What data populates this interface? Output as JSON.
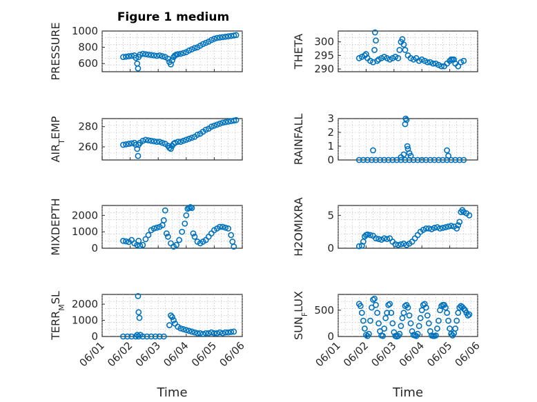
{
  "chart_data": {
    "title": "Figure 1 medium",
    "xlabel": "Time",
    "xticks": [
      "06/01",
      "06/02",
      "06/03",
      "06/04",
      "06/05",
      "06/06"
    ],
    "xlim_days": [
      0,
      5
    ],
    "marker": "circle",
    "color": "#0072BD",
    "panels": [
      {
        "type": "scatter",
        "ylabel": "PRESSURE",
        "ylim": [
          500,
          1000
        ],
        "yticks": [
          600,
          800,
          1000
        ],
        "x": [
          0.75,
          0.85,
          0.95,
          1.05,
          1.15,
          1.2,
          1.25,
          1.28,
          1.3,
          1.35,
          1.45,
          1.55,
          1.65,
          1.75,
          1.85,
          1.95,
          2.05,
          2.15,
          2.25,
          2.35,
          2.4,
          2.45,
          2.5,
          2.55,
          2.6,
          2.65,
          2.7,
          2.8,
          2.9,
          3.0,
          3.1,
          3.2,
          3.3,
          3.4,
          3.5,
          3.6,
          3.7,
          3.8,
          3.9,
          4.0,
          4.1,
          4.2,
          4.3,
          4.4,
          4.5,
          4.6,
          4.7,
          4.78
        ],
        "y": [
          680,
          685,
          690,
          695,
          700,
          670,
          600,
          540,
          680,
          710,
          720,
          715,
          710,
          705,
          700,
          695,
          700,
          690,
          680,
          660,
          620,
          590,
          640,
          680,
          700,
          710,
          715,
          720,
          730,
          740,
          760,
          775,
          790,
          800,
          820,
          840,
          855,
          870,
          890,
          905,
          915,
          920,
          925,
          930,
          935,
          940,
          945,
          950
        ]
      },
      {
        "type": "scatter",
        "ylabel": "THETA",
        "ylim": [
          289,
          304
        ],
        "yticks": [
          290,
          295,
          300
        ],
        "x": [
          0.75,
          0.85,
          0.95,
          1.0,
          1.05,
          1.15,
          1.25,
          1.3,
          1.32,
          1.35,
          1.4,
          1.45,
          1.55,
          1.65,
          1.75,
          1.85,
          1.95,
          2.05,
          2.15,
          2.2,
          2.25,
          2.3,
          2.35,
          2.4,
          2.5,
          2.6,
          2.7,
          2.8,
          2.9,
          3.0,
          3.1,
          3.2,
          3.3,
          3.4,
          3.5,
          3.6,
          3.7,
          3.8,
          3.9,
          4.0,
          4.05,
          4.1,
          4.15,
          4.2,
          4.3,
          4.4,
          4.5
        ],
        "y": [
          294,
          294.5,
          295,
          295.5,
          294,
          293,
          292.5,
          297,
          303.5,
          300.5,
          293,
          293.5,
          294,
          294.5,
          294,
          293.5,
          294,
          294.5,
          294,
          297,
          300,
          301,
          299,
          297,
          295,
          294,
          293.5,
          294,
          293,
          293.5,
          293,
          292.5,
          292.5,
          292,
          292,
          291.5,
          291,
          291,
          292,
          293,
          293.5,
          293.5,
          293.5,
          292,
          291,
          292.5,
          293
        ]
      },
      {
        "type": "scatter",
        "ylabel": "AIR_TEMP",
        "ylim": [
          247,
          288
        ],
        "yticks": [
          260,
          280
        ],
        "x": [
          0.75,
          0.85,
          0.95,
          1.05,
          1.15,
          1.2,
          1.25,
          1.28,
          1.3,
          1.35,
          1.45,
          1.55,
          1.65,
          1.75,
          1.85,
          1.95,
          2.05,
          2.15,
          2.25,
          2.35,
          2.4,
          2.45,
          2.5,
          2.55,
          2.6,
          2.7,
          2.8,
          2.9,
          3.0,
          3.1,
          3.2,
          3.3,
          3.4,
          3.5,
          3.6,
          3.7,
          3.8,
          3.9,
          4.0,
          4.1,
          4.2,
          4.3,
          4.4,
          4.5,
          4.6,
          4.7,
          4.78
        ],
        "y": [
          262,
          262.5,
          263,
          263.5,
          264,
          262,
          258,
          251,
          262,
          264,
          266,
          267,
          266.5,
          266,
          265.5,
          265,
          265,
          264,
          263,
          261,
          259,
          258,
          261,
          263,
          264,
          265,
          265,
          266,
          267,
          268,
          269,
          270,
          272,
          273,
          275,
          277,
          278,
          280,
          281,
          282,
          283,
          284,
          284.5,
          285,
          285.5,
          286,
          286.5
        ]
      },
      {
        "type": "scatter",
        "ylabel": "RAINFALL",
        "ylim": [
          0,
          3
        ],
        "yticks": [
          0,
          1,
          2,
          3
        ],
        "x": [
          0.75,
          0.9,
          1.05,
          1.2,
          1.35,
          1.5,
          1.65,
          1.8,
          1.95,
          2.1,
          2.25,
          2.4,
          2.55,
          2.7,
          2.85,
          3.0,
          3.15,
          3.3,
          3.45,
          3.6,
          3.75,
          3.9,
          4.05,
          4.2,
          4.35,
          4.5,
          1.25,
          2.25,
          2.35,
          2.4,
          2.42,
          2.45,
          2.48,
          2.5,
          2.55,
          2.6,
          3.9,
          3.95
        ],
        "y": [
          0,
          0,
          0,
          0,
          0,
          0,
          0,
          0,
          0,
          0,
          0,
          0,
          0,
          0,
          0,
          0,
          0,
          0,
          0,
          0,
          0,
          0,
          0,
          0,
          0,
          0,
          0.7,
          0.2,
          0.4,
          2.6,
          3.0,
          2.9,
          1.0,
          0.8,
          0.5,
          0.3,
          0.7,
          0.3
        ]
      },
      {
        "type": "scatter",
        "ylabel": "MIXDEPTH",
        "ylim": [
          0,
          2600
        ],
        "yticks": [
          0,
          1000,
          2000
        ],
        "x": [
          0.75,
          0.85,
          0.95,
          1.05,
          1.15,
          1.25,
          1.3,
          1.35,
          1.45,
          1.55,
          1.65,
          1.75,
          1.85,
          1.95,
          2.05,
          2.15,
          2.2,
          2.25,
          2.3,
          2.35,
          2.45,
          2.55,
          2.65,
          2.75,
          2.85,
          2.95,
          3.0,
          3.05,
          3.1,
          3.15,
          3.2,
          3.25,
          3.3,
          3.4,
          3.5,
          3.6,
          3.7,
          3.8,
          3.9,
          4.0,
          4.1,
          4.2,
          4.3,
          4.4,
          4.5,
          4.6,
          4.65,
          4.7
        ],
        "y": [
          450,
          420,
          380,
          500,
          300,
          200,
          450,
          150,
          200,
          550,
          800,
          1100,
          1200,
          1250,
          1300,
          1400,
          1700,
          2300,
          900,
          700,
          300,
          100,
          200,
          500,
          1000,
          1500,
          2000,
          2400,
          2450,
          2500,
          2450,
          900,
          700,
          400,
          300,
          400,
          500,
          700,
          900,
          1100,
          1200,
          1300,
          1300,
          1250,
          1200,
          800,
          400,
          100
        ]
      },
      {
        "type": "scatter",
        "ylabel": "H2OMIXRA",
        "ylim": [
          0,
          6.5
        ],
        "yticks": [
          0,
          5
        ],
        "x": [
          0.75,
          0.85,
          0.9,
          0.95,
          1.0,
          1.05,
          1.15,
          1.25,
          1.35,
          1.45,
          1.55,
          1.65,
          1.75,
          1.85,
          1.95,
          2.05,
          2.15,
          2.25,
          2.35,
          2.45,
          2.55,
          2.65,
          2.75,
          2.85,
          2.95,
          3.05,
          3.15,
          3.25,
          3.35,
          3.45,
          3.55,
          3.65,
          3.75,
          3.85,
          3.95,
          4.05,
          4.15,
          4.25,
          4.3,
          4.35,
          4.4,
          4.45,
          4.5,
          4.6,
          4.7
        ],
        "y": [
          0.3,
          0.4,
          1.0,
          1.8,
          2.0,
          2.1,
          2.0,
          1.9,
          1.5,
          1.4,
          1.3,
          1.5,
          1.4,
          1.5,
          1.0,
          0.6,
          0.5,
          0.6,
          0.7,
          0.5,
          0.7,
          1.0,
          1.5,
          2.0,
          2.5,
          2.8,
          3.0,
          3.0,
          2.9,
          3.1,
          3.2,
          3.0,
          3.1,
          3.2,
          3.3,
          3.4,
          3.3,
          3.0,
          3.5,
          4.0,
          5.5,
          5.8,
          5.5,
          5.3,
          5.0
        ]
      },
      {
        "type": "scatter",
        "ylabel": "TERR_MSL",
        "ylim": [
          0,
          2600
        ],
        "yticks": [
          0,
          1000,
          2000
        ],
        "x": [
          0.75,
          0.9,
          1.05,
          1.2,
          1.3,
          1.45,
          1.6,
          1.75,
          1.9,
          2.05,
          2.2,
          1.25,
          1.28,
          1.3,
          1.33,
          1.36,
          2.4,
          2.45,
          2.5,
          2.55,
          2.6,
          2.7,
          2.8,
          2.9,
          3.0,
          3.1,
          3.2,
          3.3,
          3.4,
          3.5,
          3.6,
          3.7,
          3.8,
          3.9,
          4.0,
          4.1,
          4.2,
          4.3,
          4.4,
          4.5,
          4.6,
          4.7
        ],
        "y": [
          0,
          0,
          0,
          0,
          0,
          0,
          0,
          0,
          0,
          0,
          0,
          100,
          2500,
          1500,
          1150,
          100,
          700,
          1300,
          1200,
          1000,
          800,
          600,
          500,
          450,
          400,
          350,
          300,
          250,
          200,
          200,
          150,
          200,
          200,
          250,
          200,
          200,
          250,
          200,
          250,
          250,
          280,
          300
        ]
      },
      {
        "type": "scatter",
        "ylabel": "SUN_FLUX",
        "ylim": [
          0,
          800
        ],
        "yticks": [
          0,
          500
        ],
        "x": [
          0.75,
          0.8,
          0.85,
          0.9,
          0.95,
          1.0,
          1.05,
          1.1,
          1.15,
          1.2,
          1.25,
          1.3,
          1.35,
          1.4,
          1.45,
          1.5,
          1.55,
          1.6,
          1.65,
          1.7,
          1.75,
          1.8,
          1.85,
          1.9,
          1.95,
          2.0,
          2.05,
          2.1,
          2.15,
          2.2,
          2.25,
          2.3,
          2.35,
          2.4,
          2.45,
          2.5,
          2.55,
          2.6,
          2.65,
          2.7,
          2.75,
          2.8,
          2.85,
          2.9,
          2.95,
          3.0,
          3.05,
          3.1,
          3.15,
          3.2,
          3.25,
          3.3,
          3.35,
          3.4,
          3.45,
          3.5,
          3.55,
          3.6,
          3.65,
          3.7,
          3.75,
          3.8,
          3.85,
          3.9,
          3.95,
          4.0,
          4.05,
          4.1,
          4.15,
          4.2,
          4.25,
          4.3,
          4.35,
          4.4,
          4.45,
          4.5,
          4.55,
          4.6,
          4.65,
          4.7
        ],
        "y": [
          620,
          580,
          450,
          300,
          150,
          30,
          10,
          50,
          300,
          550,
          700,
          720,
          600,
          450,
          250,
          100,
          20,
          10,
          150,
          350,
          450,
          600,
          620,
          450,
          250,
          80,
          10,
          0,
          10,
          50,
          200,
          350,
          450,
          580,
          600,
          550,
          400,
          250,
          100,
          30,
          20,
          10,
          50,
          200,
          350,
          500,
          600,
          620,
          550,
          400,
          250,
          100,
          20,
          10,
          10,
          20,
          150,
          300,
          500,
          580,
          600,
          600,
          550,
          450,
          300,
          150,
          50,
          20,
          60,
          150,
          300,
          450,
          550,
          580,
          560,
          530,
          500,
          450,
          400,
          420
        ]
      }
    ]
  }
}
